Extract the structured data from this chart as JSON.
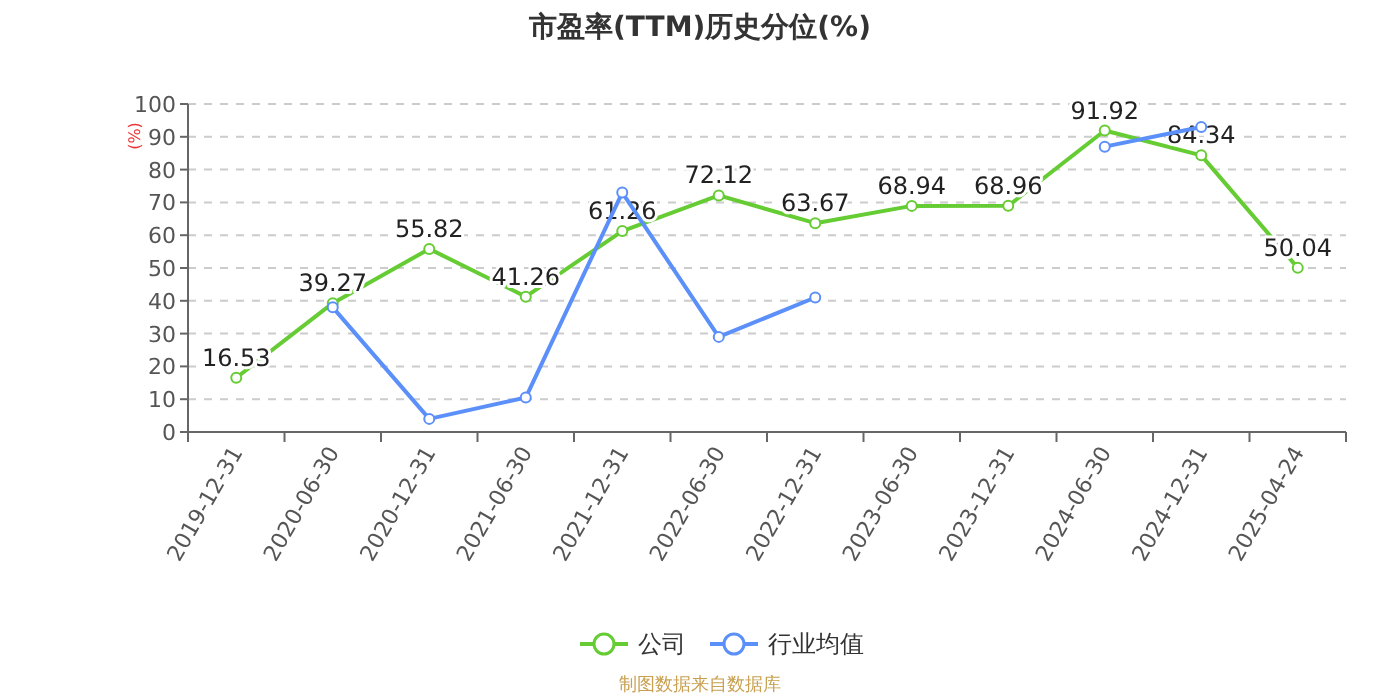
{
  "chart_data": {
    "type": "line",
    "title": "市盈率(TTM)历史分位(%)",
    "ylabel": "(%)",
    "categories": [
      "2019-12-31",
      "2020-06-30",
      "2020-12-31",
      "2021-06-30",
      "2021-12-31",
      "2022-06-30",
      "2022-12-31",
      "2023-06-30",
      "2023-12-31",
      "2024-06-30",
      "2024-12-31",
      "2025-04-24"
    ],
    "series": [
      {
        "name": "公司",
        "color": "#66cc33",
        "values": [
          16.53,
          39.27,
          55.82,
          41.26,
          61.26,
          72.12,
          63.67,
          68.94,
          68.96,
          91.92,
          84.34,
          50.04
        ],
        "value_labels": [
          "16.53",
          "39.27",
          "55.82",
          "41.26",
          "61.26",
          "72.12",
          "63.67",
          "68.94",
          "68.96",
          "91.92",
          "84.34",
          "50.04"
        ]
      },
      {
        "name": "行业均值",
        "color": "#5b8ff9",
        "values": [
          null,
          38,
          4,
          10.5,
          73,
          29,
          41,
          null,
          null,
          87,
          93,
          null
        ]
      }
    ],
    "ylim": [
      0,
      100
    ],
    "yticks": [
      0,
      10,
      20,
      30,
      40,
      50,
      60,
      70,
      80,
      90,
      100
    ],
    "grid": "y",
    "legend": "bottom",
    "marker": "circle",
    "line_style": "solid",
    "annotations": [
      "制图数据来自数据库"
    ]
  }
}
